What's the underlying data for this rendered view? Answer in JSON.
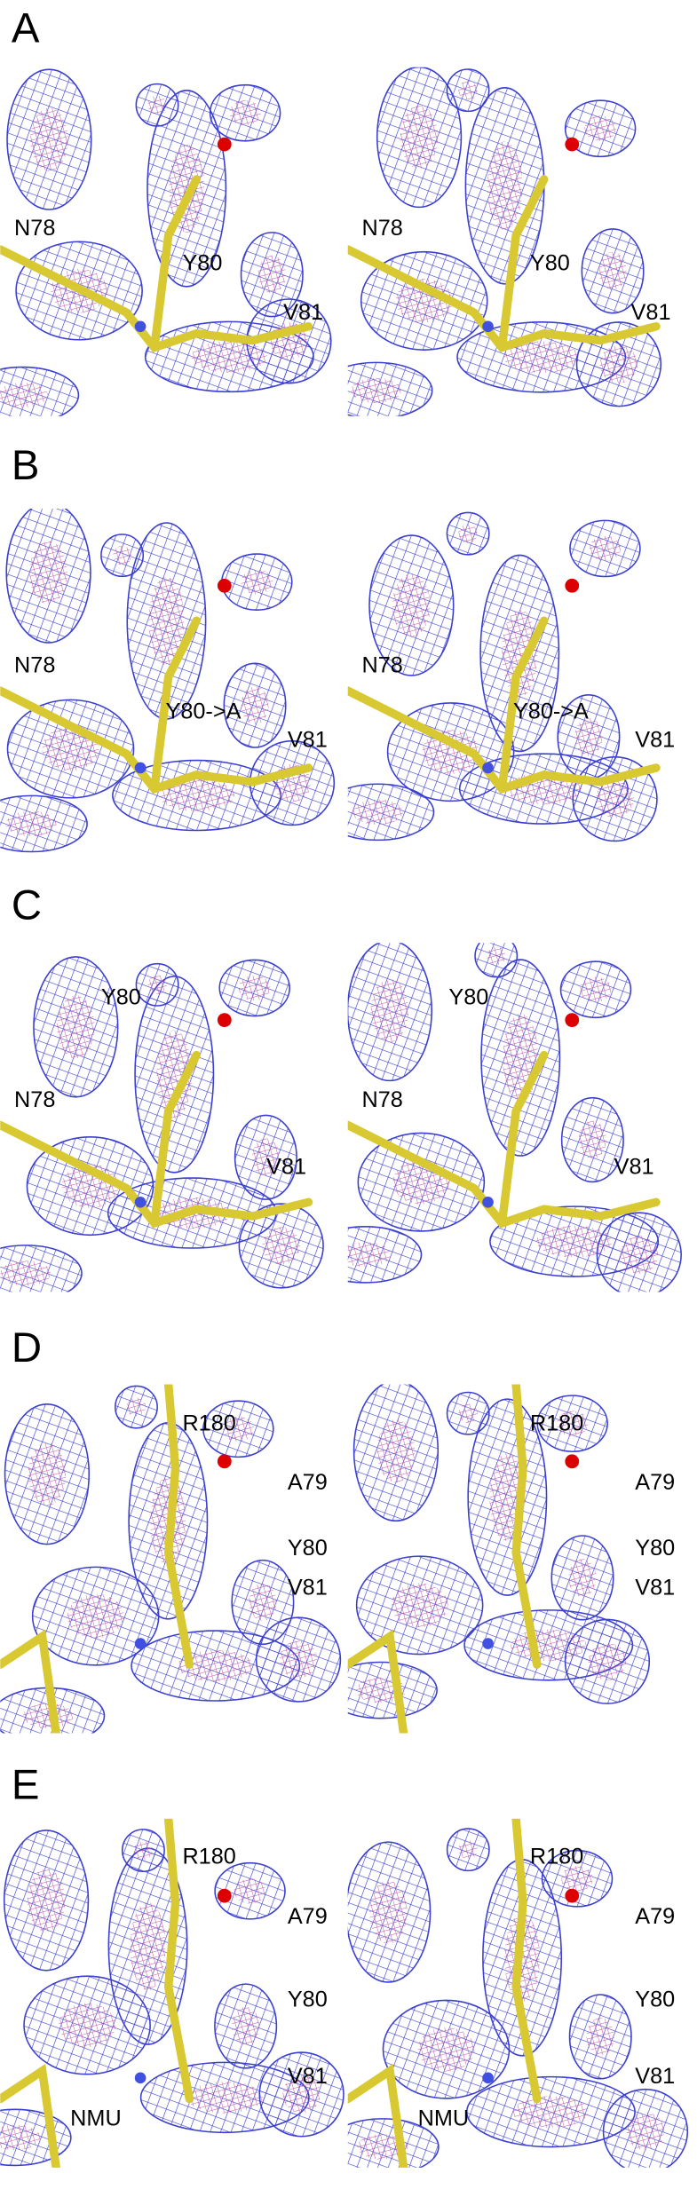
{
  "panels": [
    {
      "letter": "A",
      "labels": [
        "N78",
        "Y80",
        "V81"
      ]
    },
    {
      "letter": "B",
      "labels": [
        "N78",
        "Y80->A",
        "V81"
      ]
    },
    {
      "letter": "C",
      "labels": [
        "Y80",
        "N78",
        "V81"
      ]
    },
    {
      "letter": "D",
      "labels": [
        "R180",
        "A79",
        "Y80",
        "V81"
      ]
    },
    {
      "letter": "E",
      "labels": [
        "R180",
        "A79",
        "Y80",
        "V81",
        "NMU"
      ]
    }
  ]
}
